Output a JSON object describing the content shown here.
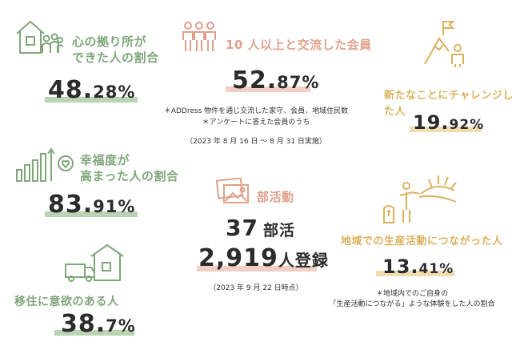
{
  "colors": {
    "green": "#7fa77a",
    "salmon": "#e0a08c",
    "gold": "#d9b25e"
  },
  "belonging": {
    "icon": "house-people-icon",
    "label_line1": "心の拠り所が",
    "label_line2": "できた人の割合",
    "value_int": "48.",
    "value_dec": "28",
    "value_unit": "%"
  },
  "exchange": {
    "icon": "group-people-icon",
    "label": "10 人以上と交流した会員",
    "value_int": "52.",
    "value_dec": "87",
    "value_unit": "%",
    "note1": "＊ADDress 物件を通じ交流した家守、会員、地域住民数",
    "note2": "＊アンケートに答えた会員のうち",
    "period": "（2023 年 8 月 16 日 〜 8 月 31 日実施）"
  },
  "challenge": {
    "icon": "mountain-flag-icon",
    "label": "新たなことにチャレンジした人",
    "value_int": "19.",
    "value_dec": "92",
    "value_unit": "%"
  },
  "happiness": {
    "icon": "growth-chart-heart-icon",
    "label_line1": "幸福度が",
    "label_line2": "高まった人の割合",
    "value_int": "83.",
    "value_dec": "91",
    "value_unit": "%"
  },
  "clubs": {
    "icon": "photos-icon",
    "label": "部活動",
    "count_num": "37",
    "count_unit": "部活",
    "members_num": "2,919",
    "members_unit": "人登録",
    "date": "（2023 年 9 月 22 日時点）"
  },
  "regional": {
    "icon": "farmer-sunrise-icon",
    "label": "地域での生産活動につながった人",
    "value_int": "13.",
    "value_dec": "41",
    "value_unit": "%",
    "note1": "＊地域内でのご自身の",
    "note2": "「生産活動につながる」ような体験をした人の割合"
  },
  "relocation": {
    "icon": "house-truck-icon",
    "label": "移住に意欲のある人",
    "value_int": "38.",
    "value_dec": "7",
    "value_unit": "%"
  }
}
